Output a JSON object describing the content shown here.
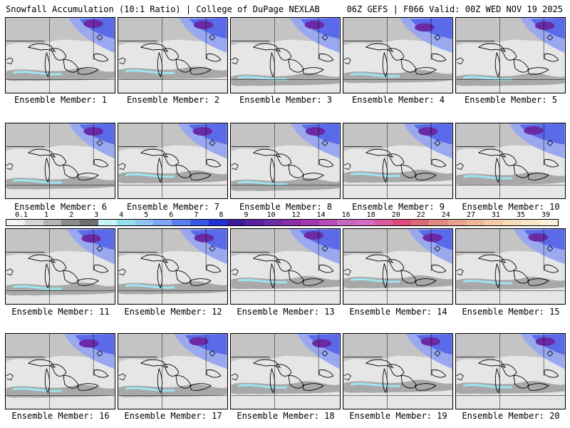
{
  "header": {
    "title_left": "Snowfall Accumulation (10:1 Ratio) | College of DuPage NEXLAB",
    "title_right": "06Z GEFS | F066 Valid: 00Z WED NOV 19 2025"
  },
  "colorbar": {
    "labels": [
      "0.1",
      "1",
      "2",
      "3",
      "4",
      "5",
      "6",
      "7",
      "8",
      "9",
      "10",
      "12",
      "14",
      "16",
      "18",
      "20",
      "22",
      "24",
      "27",
      "31",
      "35",
      "39"
    ],
    "colors": [
      "#f2f2f2",
      "#d6d6d6",
      "#b4b4b4",
      "#8c8c8c",
      "#6e6e6e",
      "#c8f2f8",
      "#96e0ee",
      "#8fc4f2",
      "#7fa6f0",
      "#5b7ff0",
      "#3a58e8",
      "#1f30d8",
      "#3a1a9a",
      "#5a1f9e",
      "#6f2aa6",
      "#8a2faa",
      "#a436b0",
      "#b84cb8",
      "#c66ac0",
      "#d46ac6",
      "#dc5a9e",
      "#e04a7e",
      "#dc6a7a",
      "#e08a84",
      "#e6a28c",
      "#ecb898",
      "#f2cca6",
      "#f6dcb6",
      "#f8e8c6",
      "#fbf0d8"
    ]
  },
  "members": [
    {
      "label": "Ensemble Member: 1"
    },
    {
      "label": "Ensemble Member: 2"
    },
    {
      "label": "Ensemble Member: 3"
    },
    {
      "label": "Ensemble Member: 4"
    },
    {
      "label": "Ensemble Member: 5"
    },
    {
      "label": "Ensemble Member: 6"
    },
    {
      "label": "Ensemble Member: 7"
    },
    {
      "label": "Ensemble Member: 8"
    },
    {
      "label": "Ensemble Member: 9"
    },
    {
      "label": "Ensemble Member: 10"
    },
    {
      "label": "Ensemble Member: 11"
    },
    {
      "label": "Ensemble Member: 12"
    },
    {
      "label": "Ensemble Member: 13"
    },
    {
      "label": "Ensemble Member: 14"
    },
    {
      "label": "Ensemble Member: 15"
    },
    {
      "label": "Ensemble Member: 16"
    },
    {
      "label": "Ensemble Member: 17"
    },
    {
      "label": "Ensemble Member: 18"
    },
    {
      "label": "Ensemble Member: 19"
    },
    {
      "label": "Ensemble Member: 20"
    }
  ]
}
